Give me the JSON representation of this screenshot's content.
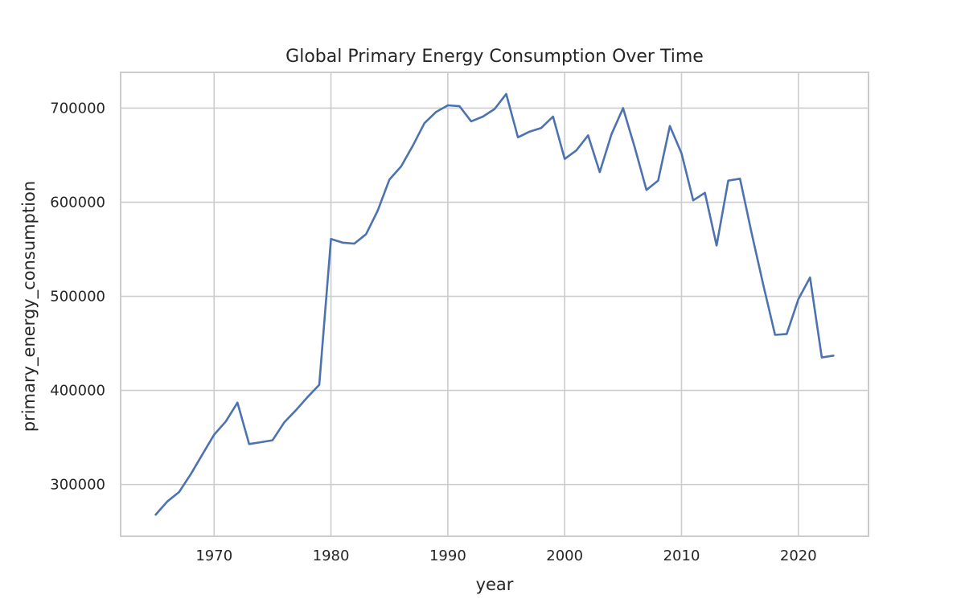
{
  "chart_data": {
    "type": "line",
    "title": "Global Primary Energy Consumption Over Time",
    "xlabel": "year",
    "ylabel": "primary_energy_consumption",
    "xlim": [
      1962,
      2026
    ],
    "ylim": [
      245000,
      738000
    ],
    "x_ticks": [
      1970,
      1980,
      1990,
      2000,
      2010,
      2020
    ],
    "y_ticks": [
      300000,
      400000,
      500000,
      600000,
      700000
    ],
    "grid": true,
    "legend": "none",
    "colors": {
      "series": "#4c72b0",
      "grid": "#cccccc",
      "text": "#262626"
    },
    "series": [
      {
        "x": [
          1965,
          1966,
          1967,
          1968,
          1969,
          1970,
          1971,
          1972,
          1973,
          1974,
          1975,
          1976,
          1977,
          1978,
          1979,
          1980,
          1981,
          1982,
          1983,
          1984,
          1985,
          1986,
          1987,
          1988,
          1989,
          1990,
          1991,
          1992,
          1993,
          1994,
          1995,
          1996,
          1997,
          1998,
          1999,
          2000,
          2001,
          2002,
          2003,
          2004,
          2005,
          2006,
          2007,
          2008,
          2009,
          2010,
          2011,
          2012,
          2013,
          2014,
          2015,
          2016,
          2017,
          2018,
          2019,
          2020,
          2021,
          2022,
          2023
        ],
        "values": [
          268000,
          282000,
          292000,
          311000,
          332000,
          353000,
          367000,
          387000,
          343000,
          345000,
          347000,
          366000,
          379000,
          393000,
          406000,
          561000,
          557000,
          556000,
          566000,
          591000,
          624000,
          638000,
          660000,
          684000,
          696000,
          703000,
          702000,
          686000,
          691000,
          699000,
          715000,
          669000,
          675000,
          679000,
          691000,
          646000,
          655000,
          671000,
          632000,
          672000,
          700000,
          658000,
          613000,
          623000,
          681000,
          652000,
          602000,
          610000,
          554000,
          623000,
          625000,
          567000,
          512000,
          459000,
          460000,
          497000,
          520000,
          435000,
          437000
        ]
      }
    ]
  }
}
